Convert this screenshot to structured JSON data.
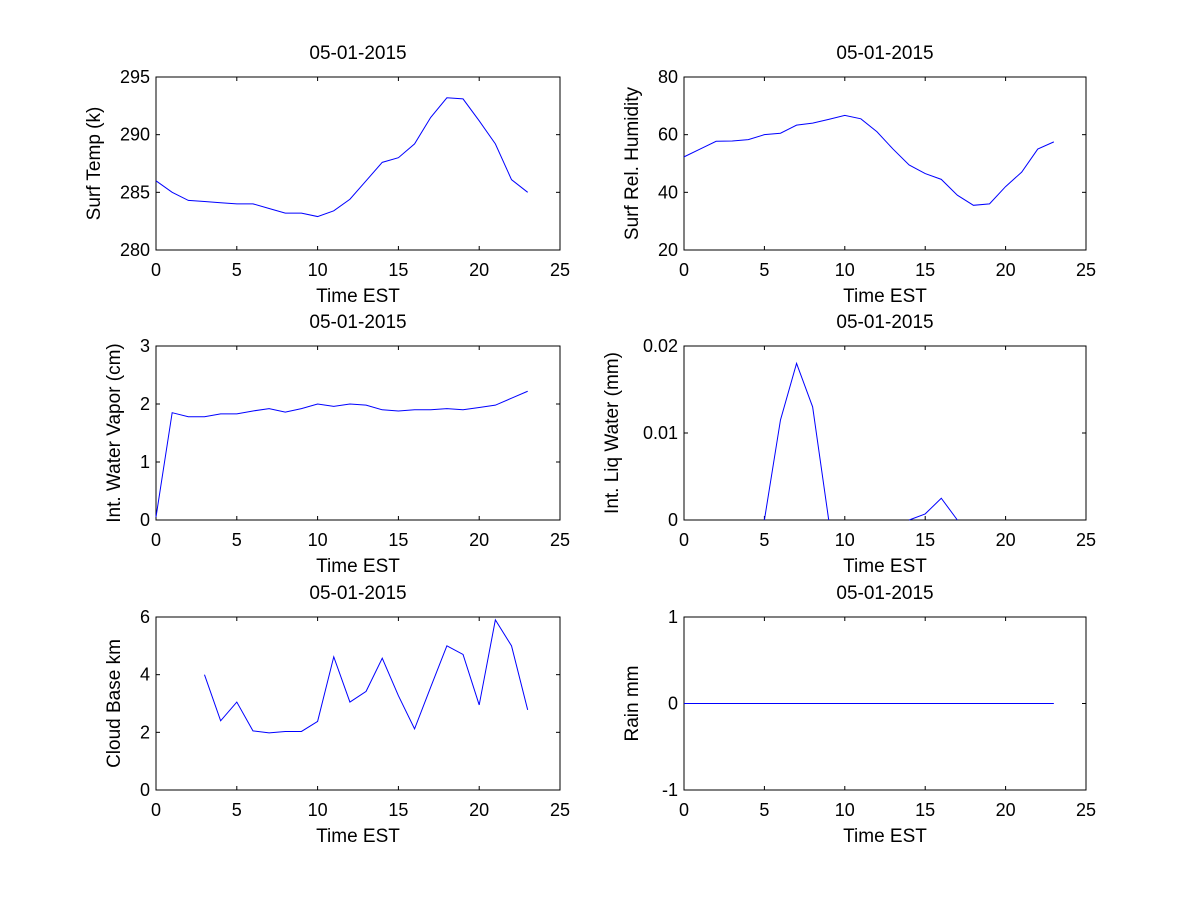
{
  "chart_data": [
    {
      "type": "line",
      "title": "05-01-2015",
      "xlabel": "Time EST",
      "ylabel": "Surf Temp (k)",
      "xlim": [
        0,
        25
      ],
      "ylim": [
        280,
        295
      ],
      "xticks": [
        0,
        5,
        10,
        15,
        20,
        25
      ],
      "yticks": [
        280,
        285,
        290,
        295
      ],
      "xticklabels": [
        "0",
        "5",
        "10",
        "15",
        "20",
        "25"
      ],
      "yticklabels": [
        "280",
        "285",
        "290",
        "295"
      ],
      "line_color": "#0000ff",
      "series": [
        {
          "name": "Surf Temp",
          "x": [
            0,
            1,
            2,
            3,
            4,
            5,
            6,
            7,
            8,
            9,
            10,
            11,
            12,
            13,
            14,
            15,
            16,
            17,
            18,
            19,
            20,
            21,
            22,
            23
          ],
          "y": [
            286.0,
            285.0,
            284.3,
            284.2,
            284.1,
            284.0,
            284.0,
            283.6,
            283.2,
            283.2,
            282.9,
            283.4,
            284.4,
            286.0,
            287.6,
            288.0,
            289.2,
            291.5,
            293.2,
            293.1,
            291.2,
            289.2,
            286.1,
            285.0
          ]
        }
      ]
    },
    {
      "type": "line",
      "title": "05-01-2015",
      "xlabel": "Time EST",
      "ylabel": "Surf Rel. Humidity",
      "xlim": [
        0,
        25
      ],
      "ylim": [
        20,
        80
      ],
      "xticks": [
        0,
        5,
        10,
        15,
        20,
        25
      ],
      "yticks": [
        20,
        40,
        60,
        80
      ],
      "xticklabels": [
        "0",
        "5",
        "10",
        "15",
        "20",
        "25"
      ],
      "yticklabels": [
        "20",
        "40",
        "60",
        "80"
      ],
      "line_color": "#0000ff",
      "series": [
        {
          "name": "Surf Rel. Humidity",
          "x": [
            0,
            1,
            2,
            3,
            4,
            5,
            6,
            7,
            8,
            9,
            10,
            11,
            12,
            13,
            14,
            15,
            16,
            17,
            18,
            19,
            20,
            21,
            22,
            23
          ],
          "y": [
            52.3,
            55.0,
            57.7,
            57.8,
            58.3,
            60.0,
            60.5,
            63.3,
            64.0,
            65.3,
            66.7,
            65.5,
            61.0,
            55.0,
            49.5,
            46.5,
            44.5,
            39.0,
            35.5,
            36.0,
            42.0,
            47.0,
            55.0,
            57.5
          ]
        }
      ]
    },
    {
      "type": "line",
      "title": "05-01-2015",
      "xlabel": "Time EST",
      "ylabel": "Int. Water Vapor (cm)",
      "xlim": [
        0,
        25
      ],
      "ylim": [
        0,
        3
      ],
      "xticks": [
        0,
        5,
        10,
        15,
        20,
        25
      ],
      "yticks": [
        0,
        1,
        2,
        3
      ],
      "xticklabels": [
        "0",
        "5",
        "10",
        "15",
        "20",
        "25"
      ],
      "yticklabels": [
        "0",
        "1",
        "2",
        "3"
      ],
      "line_color": "#0000ff",
      "series": [
        {
          "name": "Int. Water Vapor",
          "x": [
            0,
            1,
            2,
            3,
            4,
            5,
            6,
            7,
            8,
            9,
            10,
            11,
            12,
            13,
            14,
            15,
            16,
            17,
            18,
            19,
            20,
            21,
            22,
            23
          ],
          "y": [
            0.05,
            1.85,
            1.78,
            1.78,
            1.83,
            1.83,
            1.88,
            1.92,
            1.86,
            1.92,
            2.0,
            1.96,
            2.0,
            1.98,
            1.9,
            1.88,
            1.9,
            1.9,
            1.92,
            1.9,
            1.94,
            1.98,
            2.1,
            2.22
          ]
        }
      ]
    },
    {
      "type": "line",
      "title": "05-01-2015",
      "xlabel": "Time EST",
      "ylabel": "Int. Liq Water (mm)",
      "xlim": [
        0,
        25
      ],
      "ylim": [
        0,
        0.02
      ],
      "xticks": [
        0,
        5,
        10,
        15,
        20,
        25
      ],
      "yticks": [
        0,
        0.01,
        0.02
      ],
      "xticklabels": [
        "0",
        "5",
        "10",
        "15",
        "20",
        "25"
      ],
      "yticklabels": [
        "0",
        "0.01",
        "0.02"
      ],
      "line_color": "#0000ff",
      "series": [
        {
          "name": "Int. Liq Water (segment 1)",
          "x": [
            5,
            6,
            7,
            8,
            9
          ],
          "y": [
            0,
            0.0115,
            0.018,
            0.013,
            0
          ]
        },
        {
          "name": "Int. Liq Water (segment 2)",
          "x": [
            14,
            15,
            16,
            17
          ],
          "y": [
            0,
            0.0007,
            0.0025,
            0
          ]
        }
      ]
    },
    {
      "type": "line",
      "title": "05-01-2015",
      "xlabel": "Time EST",
      "ylabel": "Cloud Base km",
      "xlim": [
        0,
        25
      ],
      "ylim": [
        0,
        6
      ],
      "xticks": [
        0,
        5,
        10,
        15,
        20,
        25
      ],
      "yticks": [
        0,
        2,
        4,
        6
      ],
      "xticklabels": [
        "0",
        "5",
        "10",
        "15",
        "20",
        "25"
      ],
      "yticklabels": [
        "0",
        "2",
        "4",
        "6"
      ],
      "line_color": "#0000ff",
      "series": [
        {
          "name": "Cloud Base",
          "x": [
            3,
            4,
            5,
            6,
            7,
            8,
            9,
            10,
            11,
            12,
            13,
            14,
            15,
            16,
            17,
            18,
            19,
            20,
            21,
            22,
            23
          ],
          "y": [
            4.0,
            2.4,
            3.05,
            2.05,
            1.98,
            2.03,
            2.03,
            2.38,
            4.62,
            3.05,
            3.42,
            4.57,
            3.27,
            2.12,
            3.57,
            5.0,
            4.7,
            2.95,
            5.9,
            5.0,
            2.78
          ]
        }
      ]
    },
    {
      "type": "line",
      "title": "05-01-2015",
      "xlabel": "Time EST",
      "ylabel": "Rain mm",
      "xlim": [
        0,
        25
      ],
      "ylim": [
        -1,
        1
      ],
      "xticks": [
        0,
        5,
        10,
        15,
        20,
        25
      ],
      "yticks": [
        -1,
        0,
        1
      ],
      "xticklabels": [
        "0",
        "5",
        "10",
        "15",
        "20",
        "25"
      ],
      "yticklabels": [
        "-1",
        "0",
        "1"
      ],
      "line_color": "#0000ff",
      "series": [
        {
          "name": "Rain",
          "x": [
            0,
            1,
            2,
            3,
            4,
            5,
            6,
            7,
            8,
            9,
            10,
            11,
            12,
            13,
            14,
            15,
            16,
            17,
            18,
            19,
            20,
            21,
            22,
            23
          ],
          "y": [
            0,
            0,
            0,
            0,
            0,
            0,
            0,
            0,
            0,
            0,
            0,
            0,
            0,
            0,
            0,
            0,
            0,
            0,
            0,
            0,
            0,
            0,
            0,
            0
          ]
        }
      ]
    }
  ]
}
